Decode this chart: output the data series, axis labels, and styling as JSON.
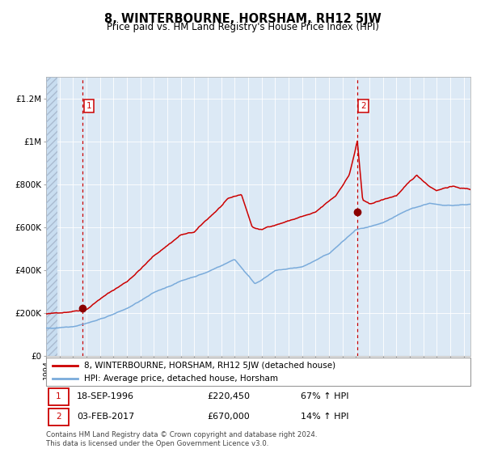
{
  "title": "8, WINTERBOURNE, HORSHAM, RH12 5JW",
  "subtitle": "Price paid vs. HM Land Registry's House Price Index (HPI)",
  "red_label": "8, WINTERBOURNE, HORSHAM, RH12 5JW (detached house)",
  "blue_label": "HPI: Average price, detached house, Horsham",
  "footer": "Contains HM Land Registry data © Crown copyright and database right 2024.\nThis data is licensed under the Open Government Licence v3.0.",
  "sale1_date_num": 1996.72,
  "sale1_price": 220450,
  "sale1_label": "18-SEP-1996",
  "sale1_price_label": "£220,450",
  "sale1_hpi": "67% ↑ HPI",
  "sale2_date_num": 2017.09,
  "sale2_price": 670000,
  "sale2_label": "03-FEB-2017",
  "sale2_price_label": "£670,000",
  "sale2_hpi": "14% ↑ HPI",
  "xmin": 1994.0,
  "xmax": 2025.5,
  "ymin": 0,
  "ymax": 1300000,
  "hatch_xmax": 1994.83,
  "background_color": "#dce9f5",
  "grid_color": "#ffffff",
  "red_color": "#cc0000",
  "blue_color": "#7aabdb",
  "sale_dot_color": "#8b0000",
  "yticks": [
    0,
    200000,
    400000,
    600000,
    800000,
    1000000,
    1200000
  ],
  "ylabels": [
    "£0",
    "£200K",
    "£400K",
    "£600K",
    "£800K",
    "£1M",
    "£1.2M"
  ]
}
